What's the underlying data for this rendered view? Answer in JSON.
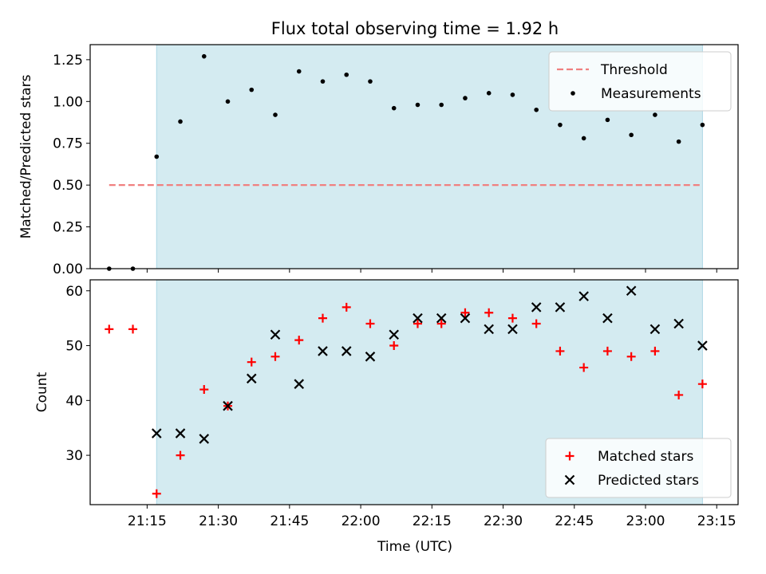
{
  "chart_data": {
    "type": "scatter",
    "title": "Flux total observing time = 1.92 h",
    "xlabel": "Time (UTC)",
    "x_ticks": [
      "21:15",
      "21:30",
      "21:45",
      "22:00",
      "22:15",
      "22:30",
      "22:45",
      "23:00",
      "23:15"
    ],
    "x_tick_minutes": [
      1275,
      1290,
      1305,
      1320,
      1335,
      1350,
      1365,
      1380,
      1395
    ],
    "xlim_minutes": [
      1263,
      1399.5
    ],
    "observing_window_minutes": [
      1277,
      1392
    ],
    "colors": {
      "shade": "#d4ebf1",
      "shade_edge": "#add8e6",
      "threshold": "#f08080",
      "matched": "#ff0000",
      "predicted": "#000000",
      "measurement": "#000000"
    },
    "panels": [
      {
        "id": "ratio",
        "ylabel": "Matched/Predicted stars",
        "ylim": [
          0,
          1.34
        ],
        "y_ticks": [
          0.0,
          0.25,
          0.5,
          0.75,
          1.0,
          1.25
        ],
        "y_tick_labels": [
          "0.00",
          "0.25",
          "0.50",
          "0.75",
          "1.00",
          "1.25"
        ],
        "legend_position": "top-right",
        "threshold": {
          "name": "Threshold",
          "value": 0.5,
          "x_range_minutes": [
            1267,
            1392
          ]
        },
        "series": [
          {
            "name": "Measurements",
            "marker": "dot",
            "points": [
              [
                1267,
                0.0
              ],
              [
                1272,
                0.0
              ],
              [
                1277,
                0.67
              ],
              [
                1282,
                0.88
              ],
              [
                1287,
                1.27
              ],
              [
                1292,
                1.0
              ],
              [
                1297,
                1.07
              ],
              [
                1302,
                0.92
              ],
              [
                1307,
                1.18
              ],
              [
                1312,
                1.12
              ],
              [
                1317,
                1.16
              ],
              [
                1322,
                1.12
              ],
              [
                1327,
                0.96
              ],
              [
                1332,
                0.98
              ],
              [
                1337,
                0.98
              ],
              [
                1342,
                1.02
              ],
              [
                1347,
                1.05
              ],
              [
                1352,
                1.04
              ],
              [
                1357,
                0.95
              ],
              [
                1362,
                0.86
              ],
              [
                1367,
                0.78
              ],
              [
                1372,
                0.89
              ],
              [
                1377,
                0.8
              ],
              [
                1382,
                0.92
              ],
              [
                1387,
                0.76
              ],
              [
                1392,
                0.86
              ]
            ]
          }
        ]
      },
      {
        "id": "count",
        "ylabel": "Count",
        "ylim": [
          21,
          62
        ],
        "y_ticks": [
          30,
          40,
          50,
          60
        ],
        "y_tick_labels": [
          "30",
          "40",
          "50",
          "60"
        ],
        "legend_position": "bottom-right",
        "series": [
          {
            "name": "Matched stars",
            "marker": "plus",
            "points": [
              [
                1267,
                53
              ],
              [
                1272,
                53
              ],
              [
                1277,
                23
              ],
              [
                1282,
                30
              ],
              [
                1287,
                42
              ],
              [
                1292,
                39
              ],
              [
                1297,
                47
              ],
              [
                1302,
                48
              ],
              [
                1307,
                51
              ],
              [
                1312,
                55
              ],
              [
                1317,
                57
              ],
              [
                1322,
                54
              ],
              [
                1327,
                50
              ],
              [
                1332,
                54
              ],
              [
                1337,
                54
              ],
              [
                1342,
                56
              ],
              [
                1347,
                56
              ],
              [
                1352,
                55
              ],
              [
                1357,
                54
              ],
              [
                1362,
                49
              ],
              [
                1367,
                46
              ],
              [
                1372,
                49
              ],
              [
                1377,
                48
              ],
              [
                1382,
                49
              ],
              [
                1387,
                41
              ],
              [
                1392,
                43
              ]
            ]
          },
          {
            "name": "Predicted stars",
            "marker": "x",
            "points": [
              [
                1277,
                34
              ],
              [
                1282,
                34
              ],
              [
                1287,
                33
              ],
              [
                1292,
                39
              ],
              [
                1297,
                44
              ],
              [
                1302,
                52
              ],
              [
                1307,
                43
              ],
              [
                1312,
                49
              ],
              [
                1317,
                49
              ],
              [
                1322,
                48
              ],
              [
                1327,
                52
              ],
              [
                1332,
                55
              ],
              [
                1337,
                55
              ],
              [
                1342,
                55
              ],
              [
                1347,
                53
              ],
              [
                1352,
                53
              ],
              [
                1357,
                57
              ],
              [
                1362,
                57
              ],
              [
                1367,
                59
              ],
              [
                1372,
                55
              ],
              [
                1377,
                60
              ],
              [
                1382,
                53
              ],
              [
                1387,
                54
              ],
              [
                1392,
                50
              ]
            ]
          }
        ]
      }
    ]
  }
}
